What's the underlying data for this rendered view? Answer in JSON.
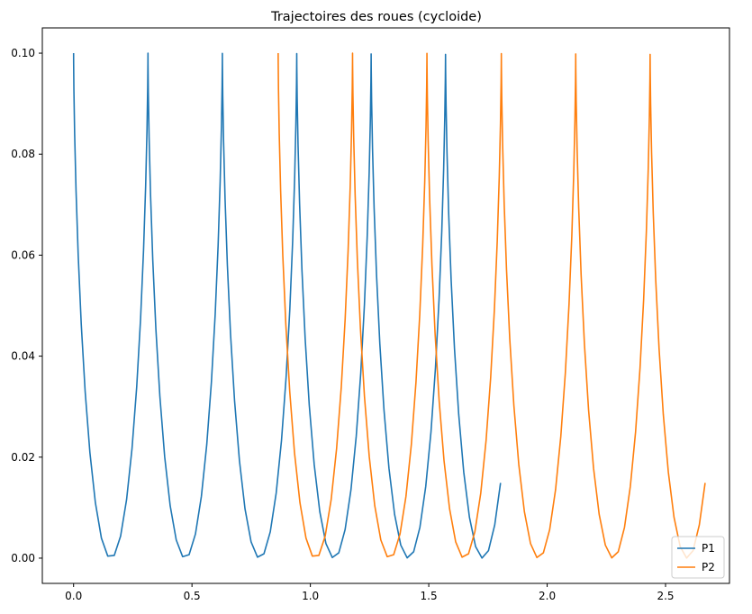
{
  "chart_data": {
    "type": "line",
    "title": "Trajectoires des roues (cycloide)",
    "xlabel": "",
    "ylabel": "",
    "xlim": [
      -0.132,
      2.77
    ],
    "ylim": [
      -0.005,
      0.105
    ],
    "xticks": [
      0.0,
      0.5,
      1.0,
      1.5,
      2.0,
      2.5
    ],
    "xtick_labels": [
      "0.0",
      "0.5",
      "1.0",
      "1.5",
      "2.0",
      "2.5"
    ],
    "yticks": [
      0.0,
      0.02,
      0.04,
      0.06,
      0.08,
      0.1
    ],
    "ytick_labels": [
      "0.00",
      "0.02",
      "0.04",
      "0.06",
      "0.08",
      "0.10"
    ],
    "grid": false,
    "legend_position": "lower right",
    "curve": {
      "radius": 0.05,
      "t_max": 35.35,
      "samples": 130
    },
    "series": [
      {
        "name": "P1",
        "color": "#1f77b4",
        "x_start": 0.0
      },
      {
        "name": "P2",
        "color": "#ff7f0e",
        "x_start": 0.864
      }
    ]
  }
}
